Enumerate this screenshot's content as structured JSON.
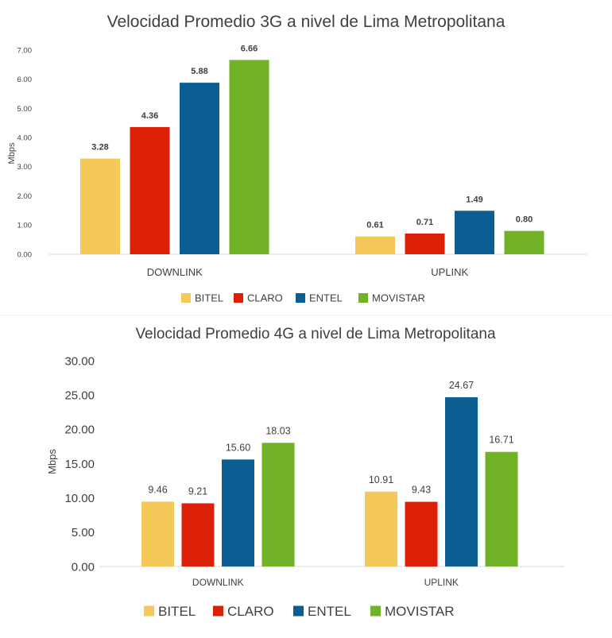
{
  "chart_data": [
    {
      "type": "bar",
      "title": "Velocidad Promedio 3G a nivel de Lima Metropolitana",
      "xlabel": "",
      "ylabel": "Mbps",
      "categories": [
        "DOWNLINK",
        "UPLINK"
      ],
      "ylim": [
        0,
        7
      ],
      "yticks": [
        "0.00",
        "1.00",
        "2.00",
        "3.00",
        "4.00",
        "5.00",
        "6.00",
        "7.00"
      ],
      "grid": false,
      "legend_position": "bottom",
      "series": [
        {
          "name": "BITEL",
          "color": "#f5c85a",
          "values": [
            3.28,
            0.61
          ],
          "labels": [
            "3.28",
            "0.61"
          ]
        },
        {
          "name": "CLARO",
          "color": "#dc2008",
          "values": [
            4.36,
            0.71
          ],
          "labels": [
            "4.36",
            "0.71"
          ]
        },
        {
          "name": "ENTEL",
          "color": "#0a5e91",
          "values": [
            5.88,
            1.49
          ],
          "labels": [
            "5.88",
            "1.49"
          ]
        },
        {
          "name": "MOVISTAR",
          "color": "#72b226",
          "values": [
            6.66,
            0.8
          ],
          "labels": [
            "6.66",
            "0.80"
          ]
        }
      ]
    },
    {
      "type": "bar",
      "title": "Velocidad Promedio 4G a nivel de Lima Metropolitana",
      "xlabel": "",
      "ylabel": "Mbps",
      "categories": [
        "DOWNLINK",
        "UPLINK"
      ],
      "ylim": [
        0,
        30
      ],
      "yticks": [
        "0.00",
        "5.00",
        "10.00",
        "15.00",
        "20.00",
        "25.00",
        "30.00"
      ],
      "grid": false,
      "legend_position": "bottom",
      "series": [
        {
          "name": "BITEL",
          "color": "#f5c85a",
          "values": [
            9.46,
            10.91
          ],
          "labels": [
            "9.46",
            "10.91"
          ]
        },
        {
          "name": "CLARO",
          "color": "#dc2008",
          "values": [
            9.21,
            9.43
          ],
          "labels": [
            "9.21",
            "9.43"
          ]
        },
        {
          "name": "ENTEL",
          "color": "#0a5e91",
          "values": [
            15.6,
            24.67
          ],
          "labels": [
            "15.60",
            "24.67"
          ]
        },
        {
          "name": "MOVISTAR",
          "color": "#72b226",
          "values": [
            18.03,
            16.71
          ],
          "labels": [
            "18.03",
            "16.71"
          ]
        }
      ]
    }
  ]
}
